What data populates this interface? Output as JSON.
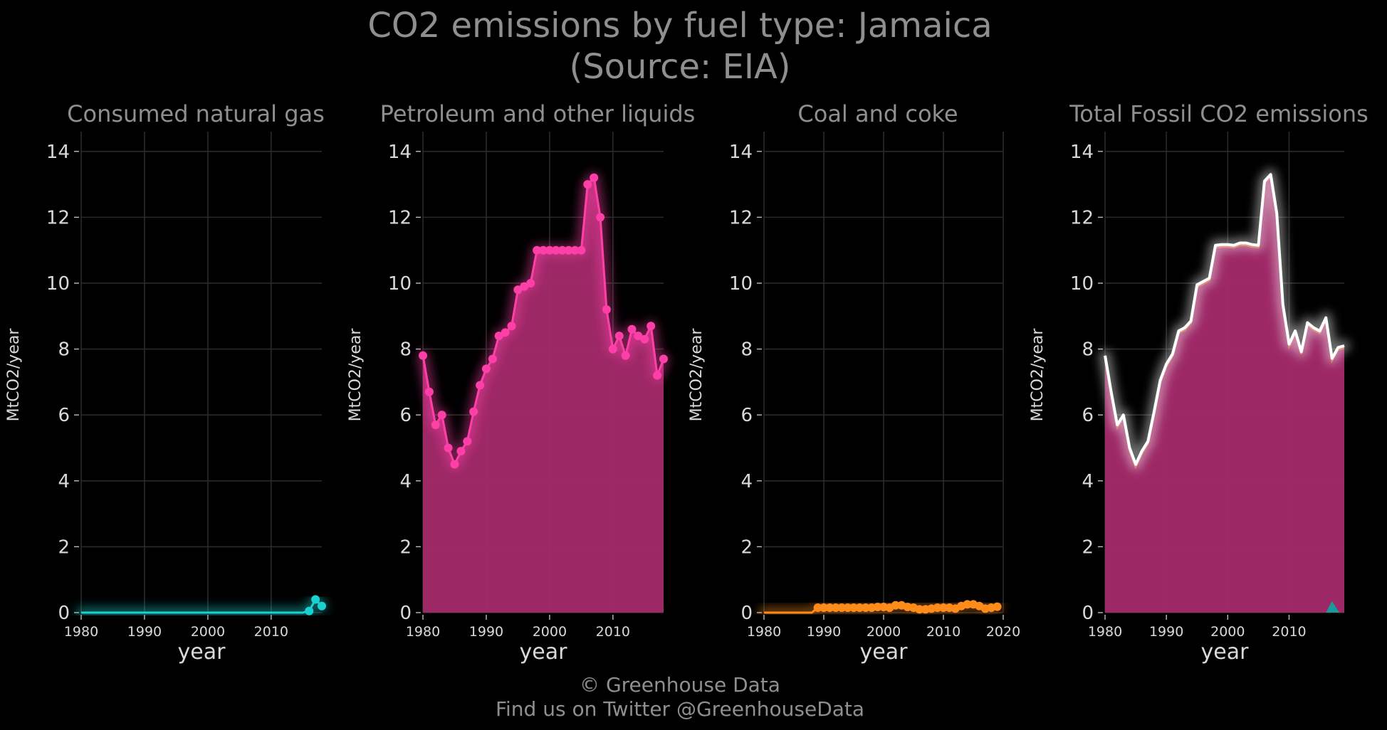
{
  "title_line1": "CO2 emissions by fuel type: Jamaica",
  "title_line2": "(Source: EIA)",
  "credit_line1": "© Greenhouse Data",
  "credit_line2": "Find us on Twitter @GreenhouseData",
  "colors": {
    "gas": "#1ad1d1",
    "petroleum": "#ff3fa8",
    "petroleum_fill": "#a52a6b",
    "coal": "#ff8c1a",
    "total_line": "#ffffff",
    "gas_area_total": "#1a9a9a"
  },
  "chart_data": [
    {
      "type": "line",
      "title": "Consumed natural gas",
      "xlabel": "year",
      "ylabel": "MtCO2/year",
      "xlim": [
        1980,
        2018
      ],
      "ylim": [
        0,
        14.6
      ],
      "xticks": [
        1980,
        1990,
        2000,
        2010
      ],
      "yticks": [
        0,
        2,
        4,
        6,
        8,
        10,
        12,
        14
      ],
      "series": [
        {
          "x": [
            1980,
            1981,
            1982,
            1983,
            1984,
            1985,
            1986,
            1987,
            1988,
            1989,
            1990,
            1991,
            1992,
            1993,
            1994,
            1995,
            1996,
            1997,
            1998,
            1999,
            2000,
            2001,
            2002,
            2003,
            2004,
            2005,
            2006,
            2007,
            2008,
            2009,
            2010,
            2011,
            2012,
            2013,
            2014,
            2015,
            2016,
            2017,
            2018
          ],
          "y": [
            0,
            0,
            0,
            0,
            0,
            0,
            0,
            0,
            0,
            0,
            0,
            0,
            0,
            0,
            0,
            0,
            0,
            0,
            0,
            0,
            0,
            0,
            0,
            0,
            0,
            0,
            0,
            0,
            0,
            0,
            0,
            0,
            0,
            0,
            0,
            0,
            0.05,
            0.4,
            0.2
          ]
        }
      ]
    },
    {
      "type": "area",
      "title": "Petroleum and other liquids",
      "xlabel": "year",
      "ylabel": "MtCO2/year",
      "xlim": [
        1980,
        2018
      ],
      "ylim": [
        0,
        14.6
      ],
      "xticks": [
        1980,
        1990,
        2000,
        2010
      ],
      "yticks": [
        0,
        2,
        4,
        6,
        8,
        10,
        12,
        14
      ],
      "series": [
        {
          "x": [
            1980,
            1981,
            1982,
            1983,
            1984,
            1985,
            1986,
            1987,
            1988,
            1989,
            1990,
            1991,
            1992,
            1993,
            1994,
            1995,
            1996,
            1997,
            1998,
            1999,
            2000,
            2001,
            2002,
            2003,
            2004,
            2005,
            2006,
            2007,
            2008,
            2009,
            2010,
            2011,
            2012,
            2013,
            2014,
            2015,
            2016,
            2017,
            2018
          ],
          "y": [
            7.8,
            6.7,
            5.7,
            6.0,
            5.0,
            4.5,
            4.9,
            5.2,
            6.1,
            6.9,
            7.4,
            7.7,
            8.4,
            8.5,
            8.7,
            9.8,
            9.9,
            10.0,
            11.0,
            11.0,
            11.0,
            11.0,
            11.0,
            11.0,
            11.0,
            11.0,
            13.0,
            13.2,
            12.0,
            9.2,
            8.0,
            8.4,
            7.8,
            8.6,
            8.4,
            8.3,
            8.7,
            7.2,
            7.7
          ]
        }
      ]
    },
    {
      "type": "line",
      "title": "Coal and coke",
      "xlabel": "year",
      "ylabel": "MtCO2/year",
      "xlim": [
        1980,
        2020
      ],
      "ylim": [
        0,
        14.6
      ],
      "xticks": [
        1980,
        1990,
        2000,
        2010,
        2020
      ],
      "yticks": [
        0,
        2,
        4,
        6,
        8,
        10,
        12,
        14
      ],
      "series": [
        {
          "x": [
            1980,
            1981,
            1982,
            1983,
            1984,
            1985,
            1986,
            1987,
            1988,
            1989,
            1990,
            1991,
            1992,
            1993,
            1994,
            1995,
            1996,
            1997,
            1998,
            1999,
            2000,
            2001,
            2002,
            2003,
            2004,
            2005,
            2006,
            2007,
            2008,
            2009,
            2010,
            2011,
            2012,
            2013,
            2014,
            2015,
            2016,
            2017,
            2018,
            2019
          ],
          "y": [
            0,
            0,
            0,
            0,
            0,
            0,
            0,
            0,
            0,
            0.15,
            0.15,
            0.15,
            0.15,
            0.15,
            0.15,
            0.15,
            0.15,
            0.15,
            0.15,
            0.17,
            0.17,
            0.15,
            0.22,
            0.22,
            0.17,
            0.15,
            0.1,
            0.1,
            0.12,
            0.15,
            0.15,
            0.15,
            0.12,
            0.2,
            0.25,
            0.25,
            0.2,
            0.12,
            0.15,
            0.18
          ]
        }
      ]
    },
    {
      "type": "area",
      "title": "Total Fossil CO2 emissions",
      "xlabel": "year",
      "ylabel": "MtCO2/year",
      "xlim": [
        1980,
        2019
      ],
      "ylim": [
        0,
        14.6
      ],
      "xticks": [
        1980,
        1990,
        2000,
        2010
      ],
      "yticks": [
        0,
        2,
        4,
        6,
        8,
        10,
        12,
        14
      ],
      "series": [
        {
          "x": [
            1980,
            1981,
            1982,
            1983,
            1984,
            1985,
            1986,
            1987,
            1988,
            1989,
            1990,
            1991,
            1992,
            1993,
            1994,
            1995,
            1996,
            1997,
            1998,
            1999,
            2000,
            2001,
            2002,
            2003,
            2004,
            2005,
            2006,
            2007,
            2008,
            2009,
            2010,
            2011,
            2012,
            2013,
            2014,
            2015,
            2016,
            2017,
            2018,
            2019
          ],
          "y": [
            7.8,
            6.7,
            5.7,
            6.0,
            5.0,
            4.5,
            4.9,
            5.2,
            6.1,
            7.05,
            7.55,
            7.85,
            8.55,
            8.65,
            8.85,
            9.95,
            10.05,
            10.15,
            11.15,
            11.17,
            11.17,
            11.15,
            11.22,
            11.22,
            11.17,
            11.15,
            13.1,
            13.3,
            12.12,
            9.35,
            8.15,
            8.55,
            7.92,
            8.8,
            8.65,
            8.55,
            8.95,
            7.72,
            8.05,
            8.1
          ]
        }
      ]
    }
  ]
}
